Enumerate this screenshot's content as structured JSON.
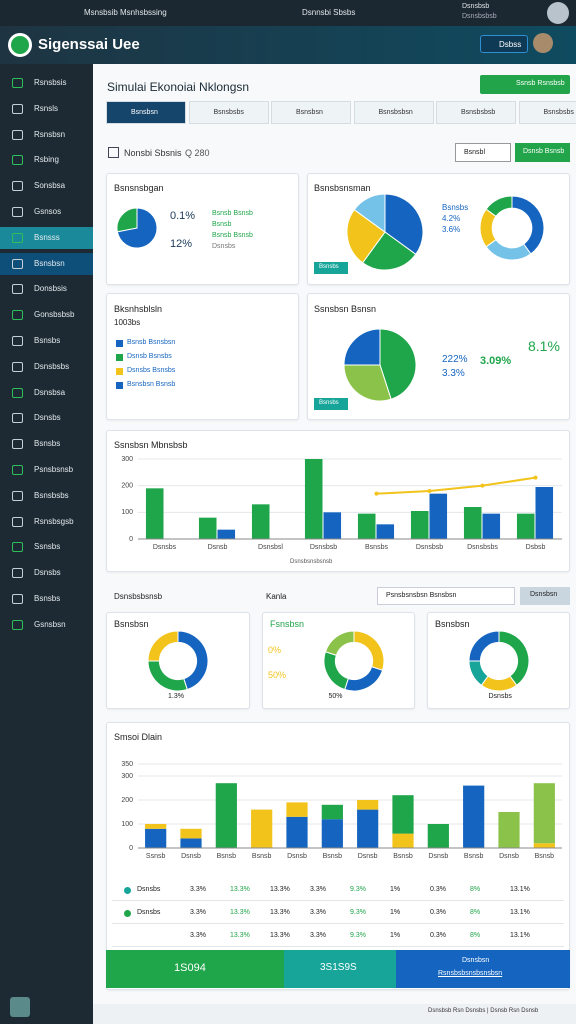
{
  "topbar": {
    "app": "Msnsbsib Msnhsbssing",
    "center": "Dsnnsbi Sbsbs",
    "user": "Dsnsbsb",
    "user_sub": "Dsnsbsbsb"
  },
  "header": {
    "title": "Sigenssai Uee",
    "button": "Dsbss"
  },
  "sidebar": {
    "items": [
      "Rsnsbsis",
      "Rsnsls",
      "Rsnsbsn",
      "Rsbing",
      "Sonsbsa",
      "Gsnsos",
      "Bsnsss",
      "Bsnsbsn",
      "Donsbsis",
      "Gonsbsbsb",
      "Bsnsbs",
      "Dsnsbsbs",
      "Dsnsbsa",
      "Dsnsbs",
      "Bsnsbs",
      "Psnsbsnsb",
      "Bsnsbsbs",
      "Rsnsbsgsb",
      "Ssnsbs",
      "Dsnsbs",
      "Bsnsbs",
      "Gsnsbsn"
    ]
  },
  "page": {
    "title": "Simulai Ekonoiai Nklongsn",
    "action": "Ssnsb Rsnsbsb",
    "tabs": [
      "Bsnsbsn",
      "Bsnsbsbs",
      "Bsnsbsn",
      "Bsnsbsbsn",
      "Bsnsbsbsb",
      "Bsnsbsbs"
    ],
    "filter": "Nonsbi Sbsnis",
    "filter_count": "Q 280",
    "btn_secondary": "Bsnsbl",
    "btn_primary": "Dsnsb Bsnsb"
  },
  "income": {
    "title": "Bsnsnsbgan",
    "stats": [
      "0.1%",
      "12%"
    ],
    "notes": [
      "Bsnsb Bsnsb",
      "Bsnsb",
      "Bsnsb Bsnsb",
      "Dsnsbs"
    ],
    "chart": {
      "type": "pie",
      "values": [
        72,
        28
      ],
      "colors": [
        "#1565c0",
        "#1fa54a"
      ]
    }
  },
  "share": {
    "title": "Bsnsbsnsman",
    "stats": [
      "Bsnsbs",
      "4.2%",
      "3.6%"
    ],
    "badge": "Bsnsbs",
    "pie": {
      "type": "pie",
      "values": [
        35,
        25,
        25,
        15
      ],
      "colors": [
        "#1565c0",
        "#1fa54a",
        "#f2c31b",
        "#74c2e8"
      ]
    },
    "donut": {
      "type": "donut",
      "values": [
        40,
        25,
        20,
        15
      ],
      "colors": [
        "#1565c0",
        "#74c2e8",
        "#f2c31b",
        "#1fa54a"
      ]
    }
  },
  "legend_panel": {
    "title": "Bksnhsblsln",
    "subtitle": "1003bs",
    "items": [
      {
        "label": "Bsnsb Bsnsbsn",
        "color": "#1565c0"
      },
      {
        "label": "Dsnsb Bsnsbs",
        "color": "#1fa54a"
      },
      {
        "label": "Dsnsbs Bsnsbs",
        "color": "#f2c31b"
      },
      {
        "label": "Bsnsbsn Bsnsb",
        "color": "#1565c0"
      }
    ]
  },
  "gauge": {
    "title": "Ssnsbsn Bsnsn",
    "stats": [
      "222%",
      "3.3%"
    ],
    "big": "3.09%",
    "extra": "8.1%",
    "badge": "Bsnsbs",
    "chart": {
      "type": "pie",
      "values": [
        45,
        30,
        25
      ],
      "colors": [
        "#1fa54a",
        "#8bc34a",
        "#1565c0"
      ]
    }
  },
  "combo": {
    "title": "Ssnsbsn Mbnsbsb",
    "note": "Dsnsbsnsbsnsb",
    "chart": {
      "type": "bar",
      "categories": [
        "Dsnsbs",
        "Dsnsb",
        "Dsnsbsl",
        "Dsnsbsb",
        "Bsnsbs",
        "Dsnsbsb",
        "Dsnsbsbs",
        "Dsbsb"
      ],
      "ylim": [
        0,
        300
      ],
      "yticks": [
        0,
        100,
        200,
        300
      ],
      "series": [
        {
          "name": "Bsnsb",
          "color": "#1fa54a",
          "values": [
            190,
            80,
            130,
            300,
            95,
            105,
            120,
            95
          ]
        },
        {
          "name": "Dsnsb",
          "color": "#1565c0",
          "values": [
            null,
            35,
            null,
            100,
            55,
            170,
            95,
            195
          ]
        },
        {
          "name": "Bsnsbsn",
          "color": "#f2c31b",
          "type": "line",
          "values": [
            null,
            null,
            null,
            null,
            170,
            180,
            200,
            230
          ]
        }
      ]
    }
  },
  "filters": {
    "left": "Dsnsbsbsnsb",
    "mid": "Kanla",
    "input": "Psnsbsnsbsn Bsnsbsn",
    "button": "Dsnsbsn"
  },
  "donuts": [
    {
      "title": "Bsnsbsn",
      "caption": "1.3%",
      "chart": {
        "type": "donut",
        "values": [
          45,
          30,
          25
        ],
        "colors": [
          "#1565c0",
          "#1fa54a",
          "#f2c31b"
        ]
      }
    },
    {
      "title": "Fsnsbsn",
      "caption": "50%",
      "stats": [
        "0%",
        "50%"
      ],
      "chart": {
        "type": "donut",
        "values": [
          30,
          25,
          25,
          20
        ],
        "colors": [
          "#f2c31b",
          "#1565c0",
          "#1fa54a",
          "#8bc34a"
        ]
      }
    },
    {
      "title": "Bsnsbsn",
      "caption": "Dsnsbs",
      "chart": {
        "type": "donut",
        "values": [
          40,
          20,
          15,
          25
        ],
        "colors": [
          "#1fa54a",
          "#f2c31b",
          "#17a59a",
          "#1565c0"
        ]
      }
    }
  ],
  "stack": {
    "title": "Smsoi Dlain",
    "chart": {
      "type": "bar",
      "stacked": true,
      "categories": [
        "Ssnsb",
        "Dsnsb",
        "Bsnsb",
        "Bsnsb",
        "Dsnsb",
        "Bsnsb",
        "Dsnsb",
        "Bsnsb",
        "Dsnsb",
        "Bsnsb",
        "Dsnsb",
        "Bsnsb"
      ],
      "ylim": [
        0,
        350
      ],
      "yticks": [
        0,
        100,
        200,
        300,
        350
      ],
      "series": [
        {
          "name": "Bsnsb",
          "color": "#1565c0",
          "values": [
            80,
            40,
            0,
            0,
            130,
            120,
            160,
            0,
            0,
            260,
            0,
            0
          ]
        },
        {
          "name": "Dsnsb",
          "color": "#f2c31b",
          "values": [
            20,
            40,
            0,
            160,
            60,
            0,
            40,
            60,
            0,
            0,
            0,
            20
          ]
        },
        {
          "name": "Gsnsb",
          "color": "#1fa54a",
          "values": [
            0,
            0,
            270,
            0,
            0,
            60,
            0,
            160,
            100,
            0,
            0,
            0
          ]
        },
        {
          "name": "Lsnsb",
          "color": "#8bc34a",
          "values": [
            0,
            0,
            0,
            0,
            0,
            0,
            0,
            0,
            0,
            0,
            150,
            250
          ]
        }
      ]
    }
  },
  "table": {
    "rows": [
      [
        "Dsnsbs",
        "3.3%",
        "13.3%",
        "13.3%",
        "3.3%",
        "9.3%",
        "1%",
        "0.3%",
        "8%",
        "13.1%"
      ],
      [
        "Dsnsbs",
        "3.3%",
        "13.3%",
        "13.3%",
        "3.3%",
        "9.3%",
        "1%",
        "0.3%",
        "8%",
        "13.1%"
      ],
      [
        "",
        "3.3%",
        "13.3%",
        "13.3%",
        "3.3%",
        "9.3%",
        "1%",
        "0.3%",
        "8%",
        "13.1%"
      ]
    ]
  },
  "totals": {
    "a": "1S094",
    "b": "3S1S9S",
    "c": "Dsnsbsn",
    "d": "Rsnsbsbsnsbsnsbsn"
  },
  "footer": "Dsnsbsb Rsn Dsnsbs | Dsnsb Rsn Dsnsb"
}
